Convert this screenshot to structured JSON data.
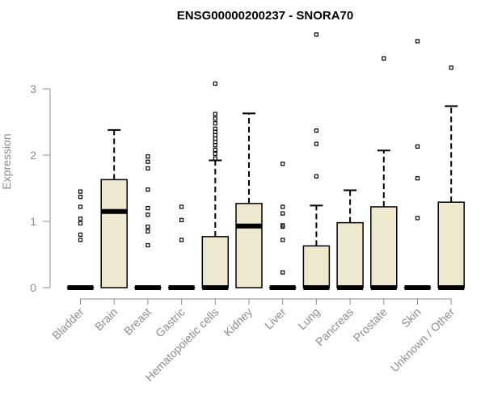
{
  "chart_data": {
    "type": "boxplot",
    "title": "ENSG00000200237 - SNORA70",
    "xlabel": "",
    "ylabel": "Expression",
    "ylim": [
      0,
      3.9
    ],
    "yticks": [
      0,
      1,
      2,
      3
    ],
    "colors": {
      "box_fill": "#EEE8CF",
      "stroke": "#000000",
      "axis": "#8c8c8c"
    },
    "categories": [
      "Bladder",
      "Brain",
      "Breast",
      "Gastric",
      "Hematopoietic cells",
      "Kidney",
      "Liver",
      "Lung",
      "Pancreas",
      "Prostate",
      "Skin",
      "Unknown / Other"
    ],
    "boxes": [
      {
        "name": "Bladder",
        "q1": 0,
        "median": 0,
        "q3": 0,
        "whisker_low": 0,
        "whisker_high": 0,
        "outliers": [
          1.45,
          1.37,
          1.22,
          1.04,
          0.97,
          0.8,
          0.72
        ]
      },
      {
        "name": "Brain",
        "q1": 0,
        "median": 1.15,
        "q3": 1.63,
        "whisker_low": 0,
        "whisker_high": 2.38,
        "outliers": []
      },
      {
        "name": "Breast",
        "q1": 0,
        "median": 0,
        "q3": 0,
        "whisker_low": 0,
        "whisker_high": 0,
        "outliers": [
          1.98,
          1.9,
          1.8,
          1.48,
          1.2,
          1.1,
          0.92,
          0.85,
          0.64
        ]
      },
      {
        "name": "Gastric",
        "q1": 0,
        "median": 0,
        "q3": 0,
        "whisker_low": 0,
        "whisker_high": 0,
        "outliers": [
          1.22,
          1.02,
          0.72
        ]
      },
      {
        "name": "Hematopoietic cells",
        "q1": 0,
        "median": 0,
        "q3": 0.77,
        "whisker_low": 0,
        "whisker_high": 1.92,
        "outliers": [
          3.08,
          2.62,
          2.55,
          2.48,
          2.4,
          2.35,
          2.3,
          2.25,
          2.2,
          2.15,
          2.08,
          2.02,
          1.95
        ]
      },
      {
        "name": "Kidney",
        "q1": 0,
        "median": 0.93,
        "q3": 1.27,
        "whisker_low": 0,
        "whisker_high": 2.63,
        "outliers": []
      },
      {
        "name": "Liver",
        "q1": 0,
        "median": 0,
        "q3": 0,
        "whisker_low": 0,
        "whisker_high": 0,
        "outliers": [
          1.87,
          1.22,
          1.12,
          0.94,
          0.92,
          0.72,
          0.23
        ]
      },
      {
        "name": "Lung",
        "q1": 0,
        "median": 0,
        "q3": 0.63,
        "whisker_low": 0,
        "whisker_high": 1.24,
        "outliers": [
          3.82,
          2.37,
          2.17,
          1.68
        ]
      },
      {
        "name": "Pancreas",
        "q1": 0,
        "median": 0,
        "q3": 0.98,
        "whisker_low": 0,
        "whisker_high": 1.47,
        "outliers": []
      },
      {
        "name": "Prostate",
        "q1": 0,
        "median": 0,
        "q3": 1.22,
        "whisker_low": 0,
        "whisker_high": 2.07,
        "outliers": [
          3.46
        ]
      },
      {
        "name": "Skin",
        "q1": 0,
        "median": 0,
        "q3": 0,
        "whisker_low": 0,
        "whisker_high": 0,
        "outliers": [
          3.72,
          2.13,
          1.65,
          1.05
        ]
      },
      {
        "name": "Unknown / Other",
        "q1": 0,
        "median": 0,
        "q3": 1.29,
        "whisker_low": 0,
        "whisker_high": 2.74,
        "outliers": [
          3.32
        ]
      }
    ]
  }
}
